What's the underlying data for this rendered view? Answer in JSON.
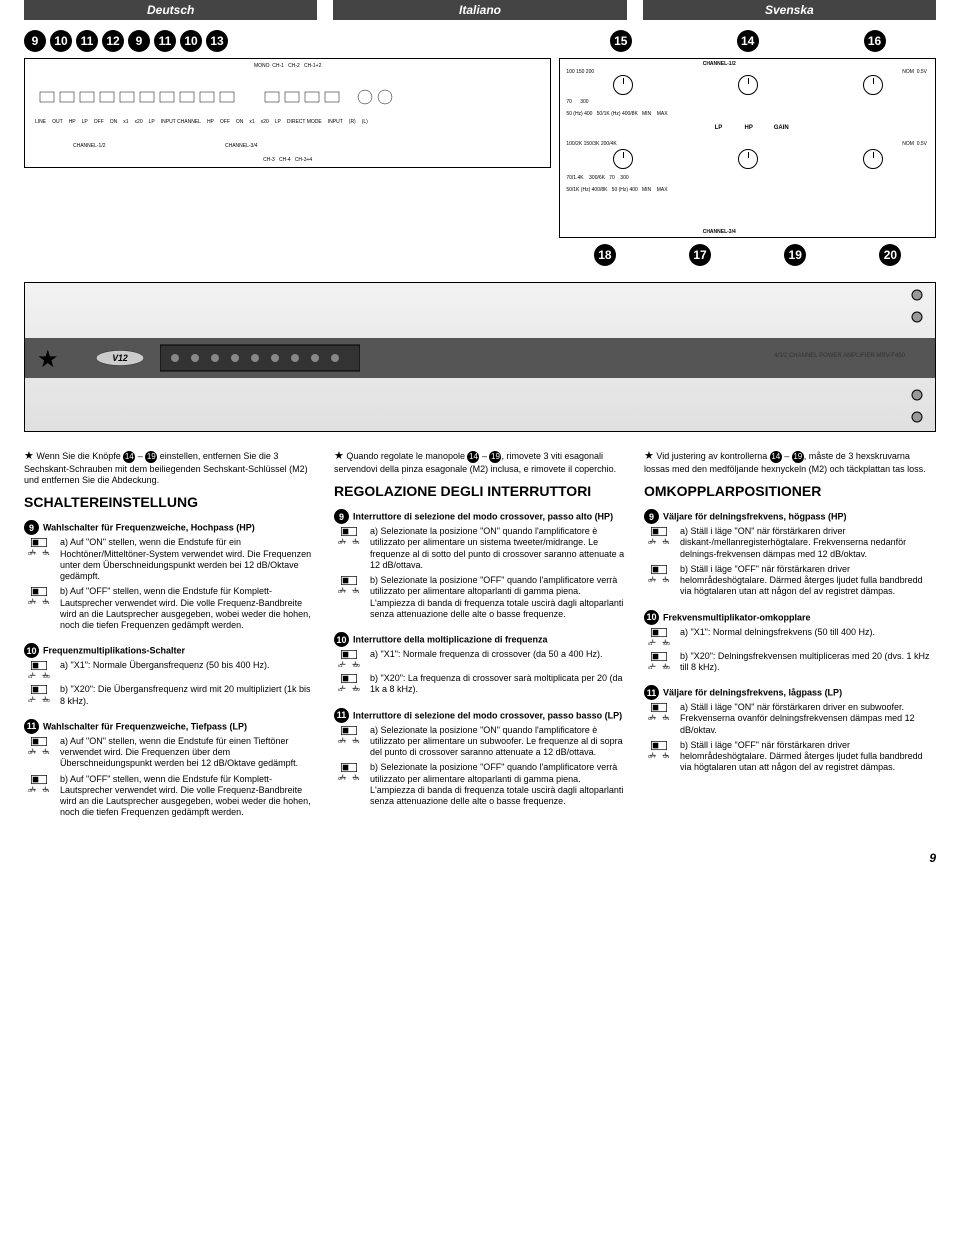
{
  "languages": [
    "Deutsch",
    "Italiano",
    "Svenska"
  ],
  "top_bubbles_left": [
    "9",
    "10",
    "11",
    "12",
    "9",
    "11",
    "10",
    "13"
  ],
  "top_bubbles_right": [
    "15",
    "14",
    "16"
  ],
  "bottom_bubbles_right": [
    "18",
    "17",
    "19",
    "20"
  ],
  "diagram_left": {
    "channels": [
      "CHANNEL-1/2",
      "CHANNEL-3/4"
    ],
    "inputs": [
      "MONO",
      "CH-1",
      "CH-2",
      "CH-1+2",
      "CH-3",
      "CH-4",
      "CH-3+4"
    ],
    "terms": [
      "LINE",
      "OUT",
      "HP",
      "LP",
      "INPUT CHANNEL",
      "DIRECT MODE",
      "INPUT",
      "(R)",
      "(L)",
      "OFF",
      "ON",
      "x1",
      "x20"
    ]
  },
  "diagram_right": {
    "blocks": [
      "CHANNEL-1/2",
      "CHANNEL-3/4"
    ],
    "lp": "LP",
    "hp": "HP",
    "gain": "GAIN",
    "ticks": [
      "50",
      "70",
      "100",
      "150",
      "200",
      "300",
      "400",
      "(Hz)",
      "100/2K",
      "150/3K",
      "200/4K",
      "50/1K",
      "70/1.4K",
      "300/6K",
      "400/8K",
      "MIN",
      "MAX",
      "NOM",
      "0.5V"
    ]
  },
  "amp_model": "4/3/2 CHANNEL POWER AMPLIFIER MRV-F450",
  "intro_refs": {
    "r1": "14",
    "r2": "19"
  },
  "columns": [
    {
      "intro": "Wenn Sie die Knöpfe ⓮ – ⓳ einstellen, entfernen Sie die 3 Sechskant-Schrauben mit dem beiliegenden Sechskant-Schlüssel (M2) und entfernen Sie die Abdeckung.",
      "title": "SCHALTEREINSTELLUNG",
      "items": [
        {
          "num": "9",
          "head": "Wahlschalter für Frequenzweiche, Hochpass (HP)",
          "subs": [
            {
              "sw": "OFF ON",
              "txt": "a) Auf \"ON\" stellen, wenn die Endstufe für ein Hochtöner/Mitteltöner-System verwendet wird. Die Frequenzen unter dem Überschneidungspunkt werden bei 12 dB/Oktave gedämpft."
            },
            {
              "sw": "OFF ON",
              "txt": "b) Auf \"OFF\" stellen, wenn die Endstufe für Komplett-Lautsprecher verwendet wird. Die volle Frequenz-Bandbreite wird an die Lautsprecher ausgegeben, wobei weder die hohen, noch die tiefen Frequenzen gedämpft werden."
            }
          ]
        },
        {
          "num": "10",
          "head": "Frequenzmultiplikations-Schalter",
          "subs": [
            {
              "sw": "x1 x20",
              "txt": "a) \"X1\": Normale Übergansfrequenz (50 bis 400 Hz)."
            },
            {
              "sw": "x1 x20",
              "txt": "b) \"X20\": Die Übergansfrequenz wird mit 20 multipliziert (1k bis 8 kHz)."
            }
          ]
        },
        {
          "num": "11",
          "head": "Wahlschalter für Frequenzweiche, Tiefpass (LP)",
          "subs": [
            {
              "sw": "OFF ON",
              "txt": "a) Auf \"ON\" stellen, wenn die Endstufe für einen Tieftöner verwendet wird. Die Frequenzen über dem Überschneidungspunkt werden bei 12 dB/Oktave gedämpft."
            },
            {
              "sw": "OFF ON",
              "txt": "b) Auf \"OFF\" stellen, wenn die Endstufe für Komplett-Lautsprecher verwendet wird. Die volle Frequenz-Bandbreite wird an die Lautsprecher ausgegeben, wobei weder die hohen, noch die tiefen Frequenzen gedämpft werden."
            }
          ]
        }
      ]
    },
    {
      "intro": "Quando regolate le manopole ⓮ – ⓳, rimovete 3 viti esagonali servendovi della pinza esagonale (M2) inclusa, e rimovete il coperchio.",
      "title": "REGOLAZIONE DEGLI INTERRUTTORI",
      "items": [
        {
          "num": "9",
          "head": "Interruttore di selezione del modo crossover, passo alto (HP)",
          "subs": [
            {
              "sw": "OFF ON",
              "txt": "a) Selezionate la posizione \"ON\" quando l'amplificatore è utilizzato per alimentare un sistema tweeter/midrange. Le frequenze al di sotto del punto di crossover saranno attenuate a 12 dB/ottava."
            },
            {
              "sw": "OFF ON",
              "txt": "b) Selezionate la posizione \"OFF\" quando l'amplificatore verrà utilizzato per alimentare altoparlanti di gamma piena. L'ampiezza di banda di frequenza totale uscirà dagli altoparlanti senza attenuazione delle alte o basse frequenze."
            }
          ]
        },
        {
          "num": "10",
          "head": "Interruttore della moltiplicazione di frequenza",
          "subs": [
            {
              "sw": "x1 x20",
              "txt": "a) \"X1\": Normale frequenza di crossover (da 50 a 400 Hz)."
            },
            {
              "sw": "x1 x20",
              "txt": "b) \"X20\": La frequenza di crossover sarà moltiplicata per 20 (da 1k a 8 kHz)."
            }
          ]
        },
        {
          "num": "11",
          "head": "Interruttore di selezione del modo crossover, passo basso (LP)",
          "subs": [
            {
              "sw": "OFF ON",
              "txt": "a) Selezionate la posizione \"ON\" quando l'amplificatore è utilizzato per alimentare un subwoofer. Le frequenze al di sopra del punto di crossover saranno attenuate a 12 dB/ottava."
            },
            {
              "sw": "OFF ON",
              "txt": "b) Selezionate la posizione \"OFF\" quando l'amplificatore verrà utilizzato per alimentare altoparlanti di gamma piena. L'ampiezza di banda di frequenza totale uscirà dagli altoparlanti senza attenuazione delle alte o basse frequenze."
            }
          ]
        }
      ]
    },
    {
      "intro": "Vid justering av kontrollerna ⓮ – ⓳, måste de 3 hexskruvarna lossas med den medföljande hexnyckeln (M2) och täckplattan tas loss.",
      "title": "OMKOPPLARPOSITIONER",
      "items": [
        {
          "num": "9",
          "head": "Väljare för delningsfrekvens, högpass (HP)",
          "subs": [
            {
              "sw": "OFF ON",
              "txt": "a) Ställ i läge \"ON\" när förstärkaren driver diskant-/mellanregisterhögtalare. Frekvenserna nedanför delnings-frekvensen dämpas med 12 dB/oktav."
            },
            {
              "sw": "OFF ON",
              "txt": "b) Ställ i läge \"OFF\" när förstärkaren driver helområdeshögtalare. Därmed återges ljudet fulla bandbredd via högtalaren utan att någon del av registret dämpas."
            }
          ]
        },
        {
          "num": "10",
          "head": "Frekvensmultiplikator-omkopplare",
          "subs": [
            {
              "sw": "x1 x20",
              "txt": "a) \"X1\": Normal delningsfrekvens (50 till 400 Hz)."
            },
            {
              "sw": "x1 x20",
              "txt": "b) \"X20\": Delningsfrekvensen multipliceras med 20 (dvs. 1 kHz till 8 kHz)."
            }
          ]
        },
        {
          "num": "11",
          "head": "Väljare för delningsfrekvens, lågpass (LP)",
          "subs": [
            {
              "sw": "OFF ON",
              "txt": "a) Ställ i läge \"ON\" när förstärkaren driver en subwoofer. Frekvenserna ovanför delningsfrekvensen dämpas med 12 dB/oktav."
            },
            {
              "sw": "OFF ON",
              "txt": "b) Ställ i läge \"OFF\" när förstärkaren driver helområdeshögtalare. Därmed återges ljudet fulla bandbredd via högtalaren utan att någon del av registret dämpas."
            }
          ]
        }
      ]
    }
  ],
  "page_number": "9"
}
